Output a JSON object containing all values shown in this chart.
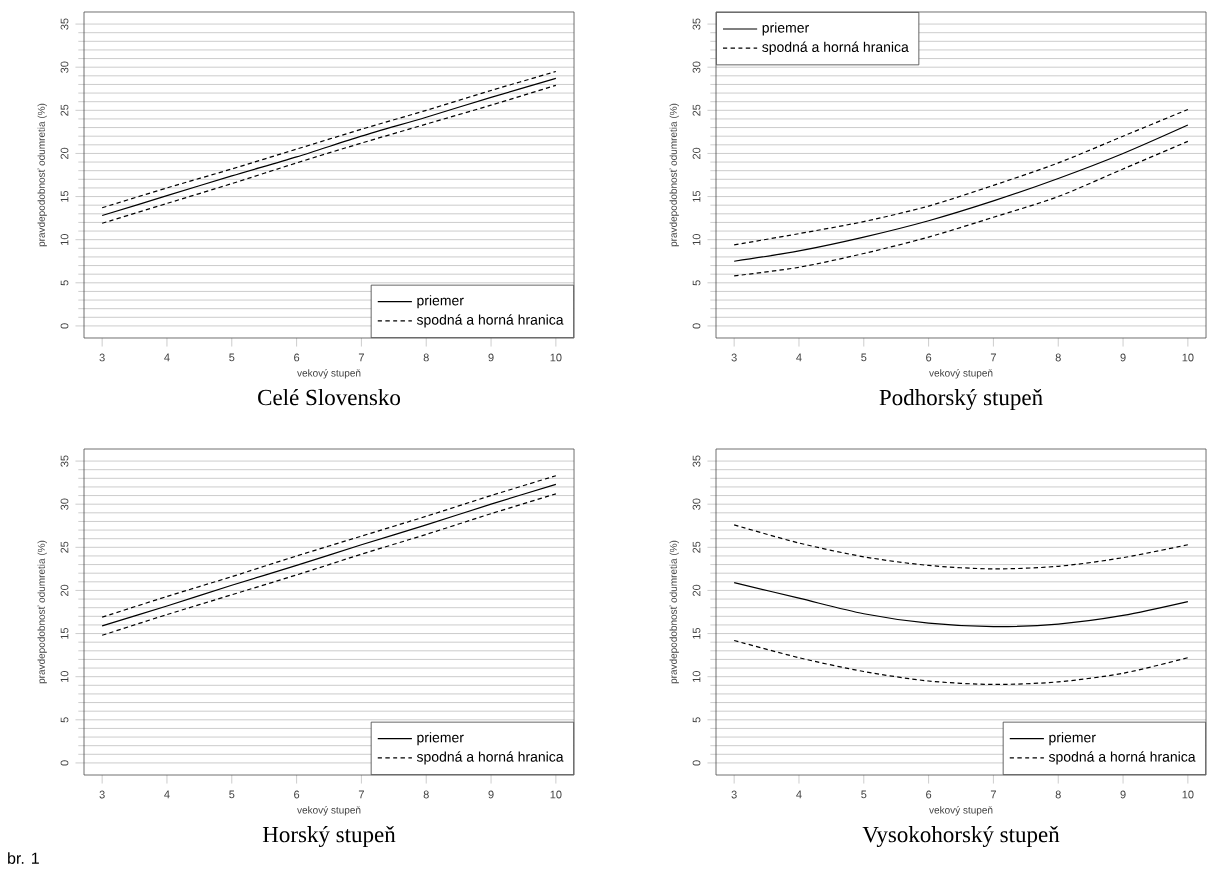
{
  "chart_data": [
    {
      "type": "line",
      "title": "Celé Slovensko",
      "xlabel": "vekový stupeň",
      "ylabel": "pravdepodobnosť odumretia (%)",
      "x": [
        3,
        4,
        5,
        6,
        7,
        8,
        9,
        10
      ],
      "xlim": [
        2.72,
        10.28
      ],
      "ylim": [
        -1.4,
        36.4
      ],
      "xticks": [
        3,
        4,
        5,
        6,
        7,
        8,
        9,
        10
      ],
      "yticks": [
        0,
        5,
        10,
        15,
        20,
        25,
        30,
        35
      ],
      "grid": "y",
      "legend": "bottom right",
      "series": [
        {
          "name": "priemer",
          "color": "#000000",
          "line_style": "solid",
          "values": [
            12.8,
            15.1,
            17.4,
            19.6,
            22.0,
            24.2,
            26.5,
            28.7
          ]
        },
        {
          "name": "spodná a horná hranica",
          "color": "#000000",
          "line_style": "dashed",
          "values": [
            13.7,
            16.0,
            18.2,
            20.5,
            22.8,
            25.0,
            27.3,
            29.5
          ]
        },
        {
          "color": "#000000",
          "line_style": "dashed",
          "values": [
            11.9,
            14.2,
            16.5,
            18.9,
            21.2,
            23.4,
            25.6,
            27.9
          ]
        }
      ]
    },
    {
      "type": "line",
      "title": "Podhorský stupeň",
      "xlabel": "vekový stupeň",
      "ylabel": "pravdepodobnosť odumretia (%)",
      "x": [
        3,
        4,
        5,
        6,
        7,
        8,
        9,
        10
      ],
      "xlim": [
        2.72,
        10.28
      ],
      "ylim": [
        -1.4,
        36.4
      ],
      "xticks": [
        3,
        4,
        5,
        6,
        7,
        8,
        9,
        10
      ],
      "yticks": [
        0,
        5,
        10,
        15,
        20,
        25,
        30,
        35
      ],
      "grid": "y",
      "legend": "top left",
      "series": [
        {
          "name": "priemer",
          "color": "#000000",
          "line_style": "solid",
          "values": [
            7.5,
            8.7,
            10.3,
            12.2,
            14.5,
            17.1,
            20.0,
            23.3
          ]
        },
        {
          "name": "spodná a horná hranica",
          "color": "#000000",
          "line_style": "dashed",
          "values": [
            9.4,
            10.7,
            12.1,
            13.9,
            16.3,
            18.9,
            22.0,
            25.1
          ]
        },
        {
          "color": "#000000",
          "line_style": "dashed",
          "values": [
            5.8,
            6.8,
            8.4,
            10.3,
            12.6,
            15.0,
            18.2,
            21.4
          ]
        }
      ]
    },
    {
      "type": "line",
      "title": "Horský stupeň",
      "xlabel": "vekový stupeň",
      "ylabel": "pravdepodobnosť odumretia (%)",
      "x": [
        3,
        4,
        5,
        6,
        7,
        8,
        9,
        10
      ],
      "xlim": [
        2.72,
        10.28
      ],
      "ylim": [
        -1.4,
        36.4
      ],
      "xticks": [
        3,
        4,
        5,
        6,
        7,
        8,
        9,
        10
      ],
      "yticks": [
        0,
        5,
        10,
        15,
        20,
        25,
        30,
        35
      ],
      "grid": "y",
      "legend": "bottom right",
      "annotations": [
        "br. 1"
      ],
      "series": [
        {
          "name": "priemer",
          "color": "#000000",
          "line_style": "solid",
          "values": [
            15.9,
            18.2,
            20.6,
            22.9,
            25.3,
            27.6,
            30.0,
            32.3
          ]
        },
        {
          "name": "spodná a horná hranica",
          "color": "#000000",
          "line_style": "dashed",
          "values": [
            16.9,
            19.3,
            21.6,
            24.0,
            26.3,
            28.6,
            31.0,
            33.3
          ]
        },
        {
          "color": "#000000",
          "line_style": "dashed",
          "values": [
            14.8,
            17.2,
            19.5,
            21.8,
            24.2,
            26.5,
            28.9,
            31.2
          ]
        }
      ]
    },
    {
      "type": "line",
      "title": "Vysokohorský stupeň",
      "xlabel": "vekový stupeň",
      "ylabel": "pravdepodobnosť odumretia (%)",
      "x": [
        3,
        4,
        5,
        6,
        7,
        8,
        9,
        10
      ],
      "xlim": [
        2.72,
        10.28
      ],
      "ylim": [
        -1.4,
        36.4
      ],
      "xticks": [
        3,
        4,
        5,
        6,
        7,
        8,
        9,
        10
      ],
      "yticks": [
        0,
        5,
        10,
        15,
        20,
        25,
        30,
        35
      ],
      "grid": "y",
      "legend": "bottom right",
      "series": [
        {
          "name": "priemer",
          "color": "#000000",
          "line_style": "solid",
          "values": [
            20.9,
            19.1,
            17.3,
            16.2,
            15.8,
            16.1,
            17.1,
            18.7
          ]
        },
        {
          "name": "spodná a horná hranica",
          "color": "#000000",
          "line_style": "dashed",
          "values": [
            27.6,
            25.5,
            23.9,
            22.9,
            22.5,
            22.8,
            23.8,
            25.3
          ]
        },
        {
          "color": "#000000",
          "line_style": "dashed",
          "values": [
            14.2,
            12.2,
            10.6,
            9.5,
            9.1,
            9.4,
            10.4,
            12.2
          ]
        }
      ]
    }
  ]
}
